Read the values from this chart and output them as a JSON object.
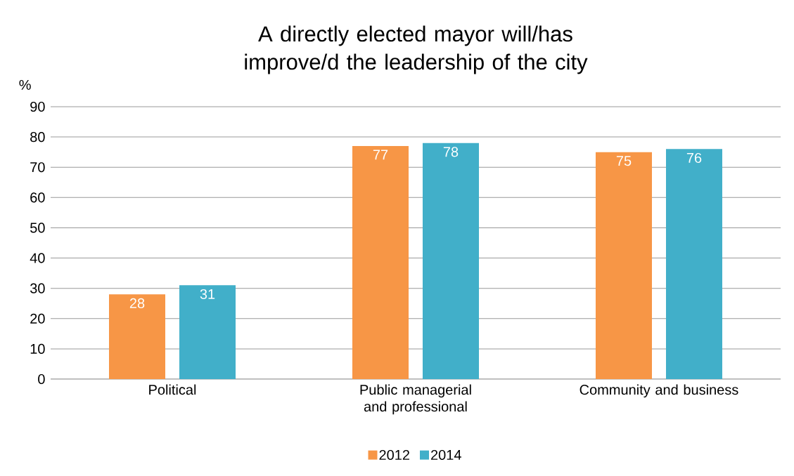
{
  "chart_data": {
    "type": "bar",
    "title": "A directly elected mayor will/has improve/d the leadership of the city",
    "ylabel": "%",
    "categories": [
      "Political",
      "Public managerial and professional",
      "Community and business"
    ],
    "series": [
      {
        "name": "2012",
        "color": "#f79646",
        "values": [
          28,
          77,
          75
        ]
      },
      {
        "name": "2014",
        "color": "#41afc9",
        "values": [
          31,
          78,
          76
        ]
      }
    ],
    "ylim": [
      0,
      90
    ],
    "yticks": [
      0,
      10,
      20,
      30,
      40,
      50,
      60,
      70,
      80,
      90
    ],
    "grid": "y",
    "legend": "bottom",
    "data_labels": true
  }
}
